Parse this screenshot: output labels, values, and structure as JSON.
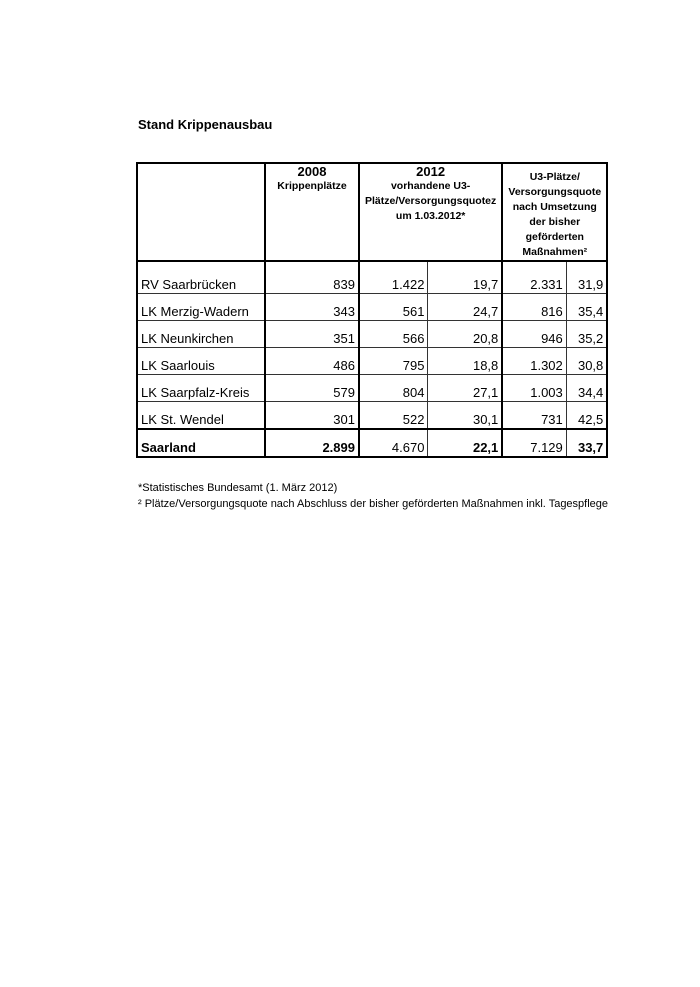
{
  "title": "Stand Krippenausbau",
  "header": {
    "col2008_year": "2008",
    "col2008_sub": "Krippenplätze",
    "col2012_year": "2012",
    "col2012_sub": "vorhandene U3-Plätze/Versorgungsquotez um 1.03.2012*",
    "col_future": "U3-Plätze/ Versorgungsquote nach Umsetzung der bisher geförderten Maßnahmen²"
  },
  "rows": [
    {
      "name": "RV Saarbrücken",
      "k2008": "839",
      "p2012": "1.422",
      "q2012": "19,7",
      "pf": "2.331",
      "qf": "31,9"
    },
    {
      "name": "LK Merzig-Wadern",
      "k2008": "343",
      "p2012": "561",
      "q2012": "24,7",
      "pf": "816",
      "qf": "35,4"
    },
    {
      "name": "LK Neunkirchen",
      "k2008": "351",
      "p2012": "566",
      "q2012": "20,8",
      "pf": "946",
      "qf": "35,2"
    },
    {
      "name": "LK Saarlouis",
      "k2008": "486",
      "p2012": "795",
      "q2012": "18,8",
      "pf": "1.302",
      "qf": "30,8"
    },
    {
      "name": "LK Saarpfalz-Kreis",
      "k2008": "579",
      "p2012": "804",
      "q2012": "27,1",
      "pf": "1.003",
      "qf": "34,4"
    },
    {
      "name": "LK St. Wendel",
      "k2008": "301",
      "p2012": "522",
      "q2012": "30,1",
      "pf": "731",
      "qf": "42,5"
    },
    {
      "name": "Saarland",
      "k2008": "2.899",
      "p2012": "4.670",
      "q2012": "22,1",
      "pf": "7.129",
      "qf": "33,7"
    }
  ],
  "footnotes": [
    "*Statistisches Bundesamt (1. März 2012)",
    "² Plätze/Versorgungsquote nach Abschluss der bisher geförderten Maßnahmen inkl. Tagespflege"
  ]
}
